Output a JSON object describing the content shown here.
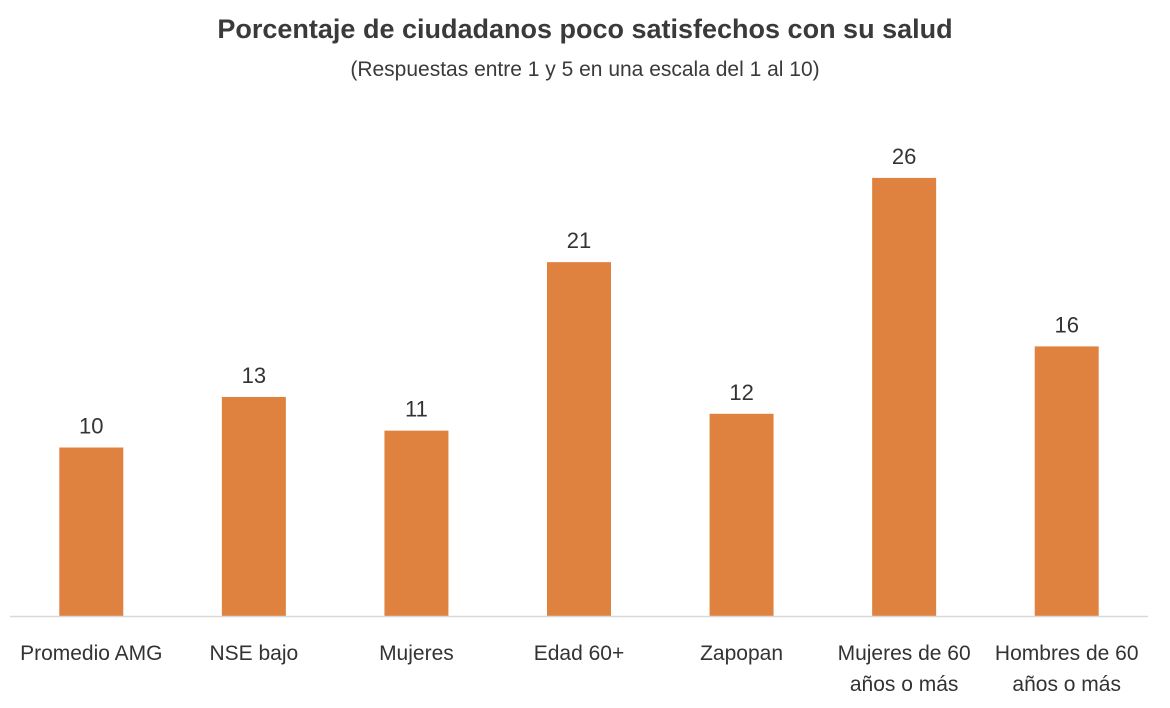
{
  "chart_data": {
    "type": "bar",
    "title": "Porcentaje de ciudadanos poco satisfechos con su salud",
    "subtitle": "(Respuestas entre 1 y 5 en una escala del 1 al 10)",
    "categories": [
      [
        "Promedio AMG"
      ],
      [
        "NSE bajo"
      ],
      [
        "Mujeres"
      ],
      [
        "Edad 60+"
      ],
      [
        "Zapopan"
      ],
      [
        "Mujeres de 60",
        "años o más"
      ],
      [
        "Hombres de 60",
        "años o más"
      ]
    ],
    "values": [
      10,
      13,
      11,
      21,
      12,
      26,
      16
    ],
    "data_labels": [
      "10",
      "13",
      "11",
      "21",
      "12",
      "26",
      "16"
    ],
    "ylim": [
      0,
      28
    ],
    "grid": false,
    "legend": "none",
    "bar_color": "#E0823F",
    "baseline_color": "#d9d9d9"
  }
}
